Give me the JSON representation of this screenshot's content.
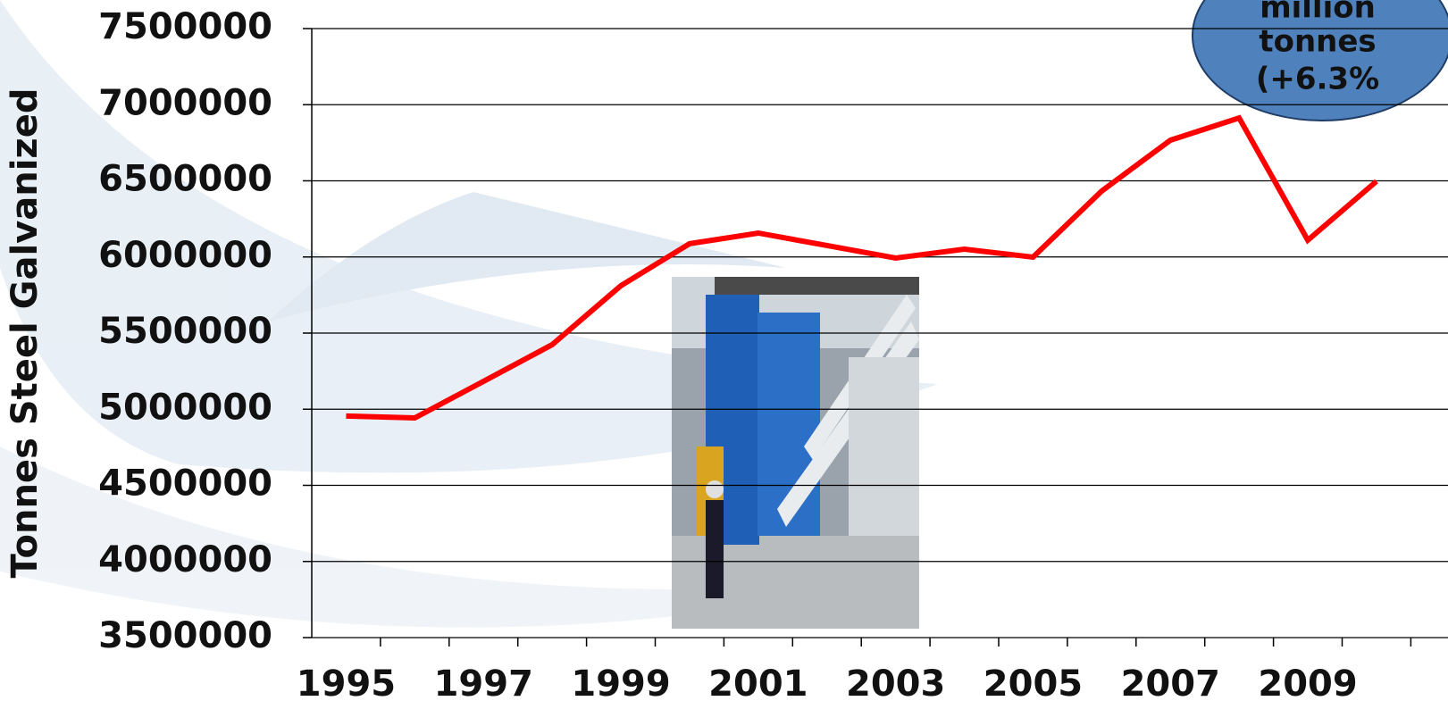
{
  "chart_data": {
    "type": "line",
    "y_axis_label": "Tonnes Steel Galvanized",
    "categories": [
      "1995",
      null,
      "1997",
      null,
      "1999",
      null,
      "2001",
      null,
      "2003",
      null,
      "2005",
      null,
      "2007",
      null,
      "2009",
      null
    ],
    "series": [
      {
        "name": "Tonnes Steel Galvanized",
        "color": "#ff0000",
        "values": [
          4955000,
          4943000,
          5183000,
          5424000,
          5811000,
          6087000,
          6157000,
          6075000,
          5993000,
          6051000,
          5999000,
          6433000,
          6767000,
          6913000,
          6110000,
          6497000
        ]
      }
    ],
    "ylim": [
      3500000,
      7500000
    ],
    "yticks": [
      3500000,
      4000000,
      4500000,
      5000000,
      5500000,
      6000000,
      6500000,
      7000000,
      7500000
    ],
    "grid": true,
    "annotation_lines": [
      "million",
      "tonnes",
      "(+6.3%"
    ]
  }
}
